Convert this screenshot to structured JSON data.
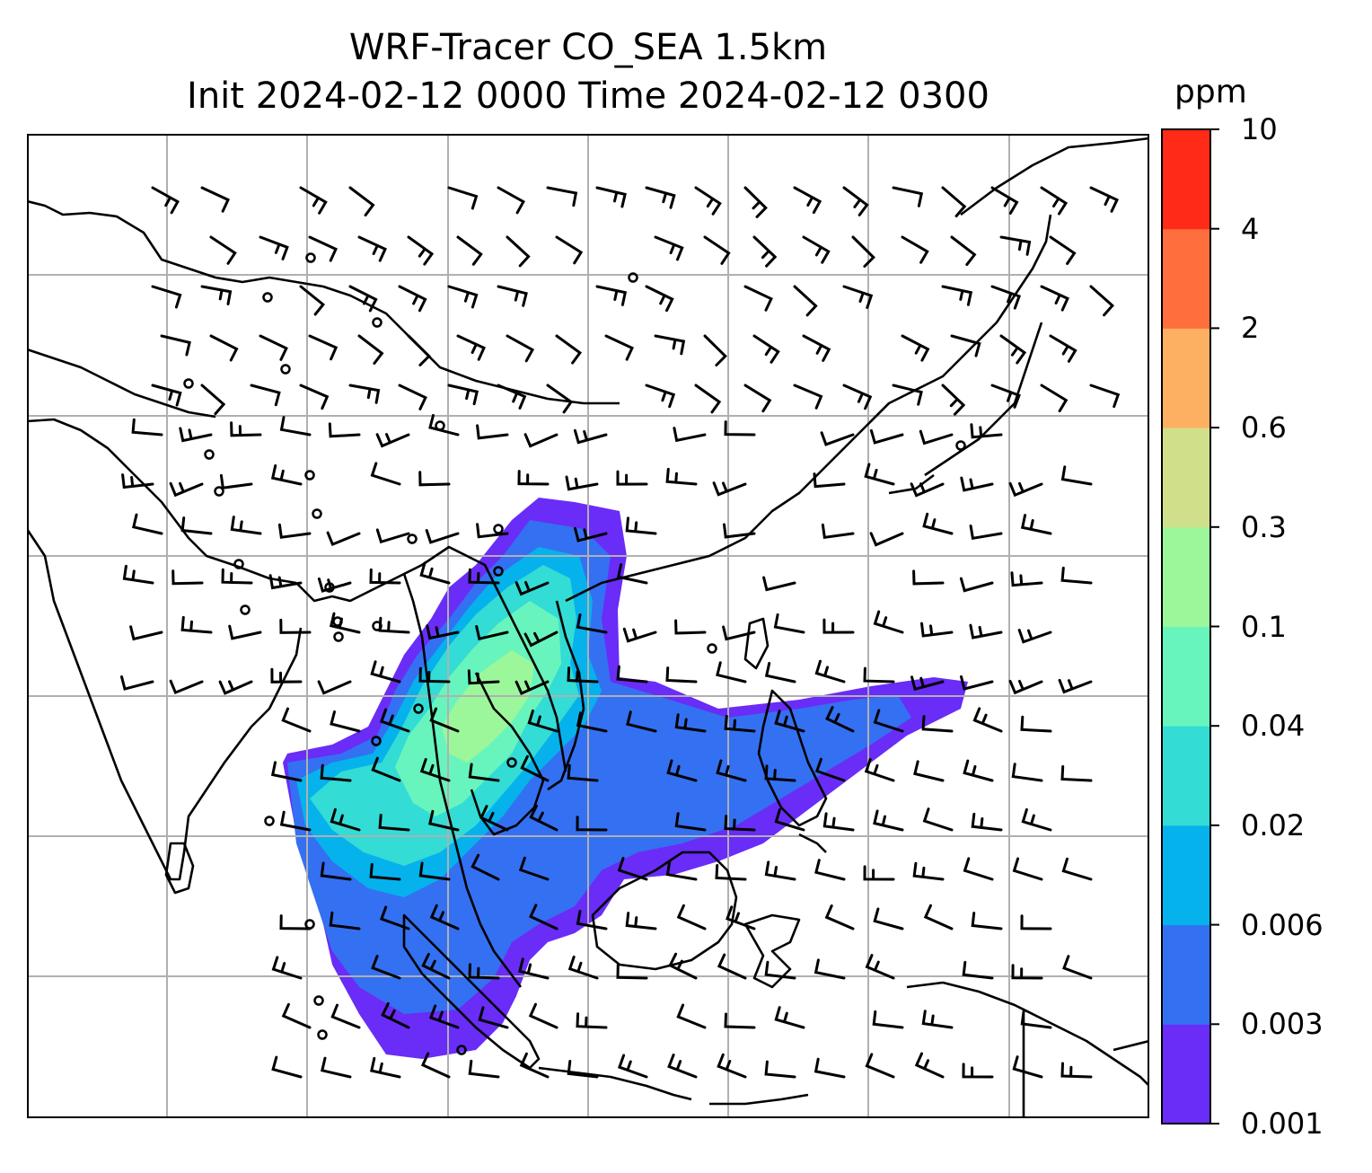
{
  "title": {
    "line1": "WRF-Tracer CO_SEA 1.5km",
    "line2": "Init 2024-02-12 0000 Time 2024-02-12 0300"
  },
  "colorbar": {
    "unit": "ppm",
    "labels": [
      "0.001",
      "0.003",
      "0.006",
      "0.02",
      "0.04",
      "0.1",
      "0.3",
      "0.6",
      "2",
      "4",
      "10"
    ],
    "colors": [
      "#6a2cf7",
      "#3470f2",
      "#05b2ec",
      "#33dcd4",
      "#67f5bd",
      "#9cf79b",
      "#d0e08a",
      "#fdb062",
      "#ff6f3d",
      "#ff2a18"
    ]
  },
  "map": {
    "gridlines": true,
    "coastline_color": "#000000",
    "grid_color": "#b0b0b0",
    "barb_color": "#000000"
  }
}
